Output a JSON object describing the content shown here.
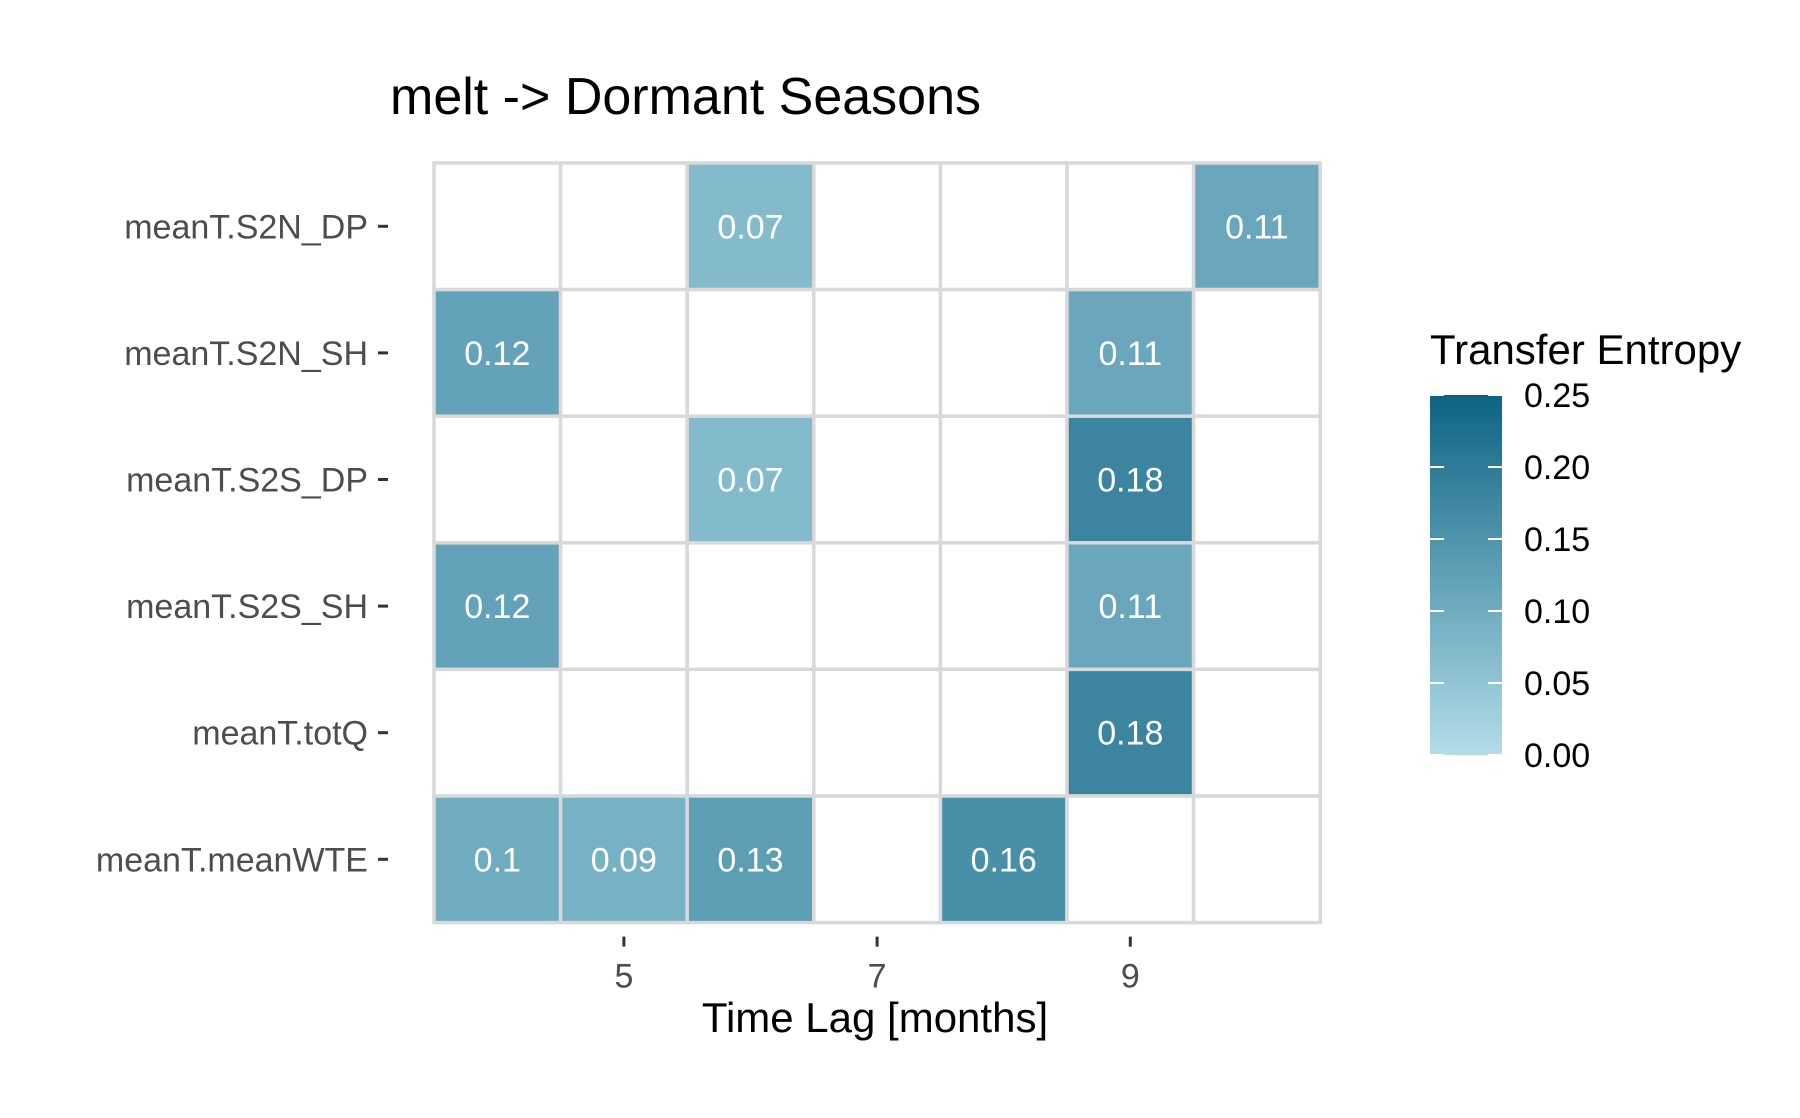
{
  "chart_data": {
    "type": "heatmap",
    "title": "melt -> Dormant Seasons",
    "xlabel": "Time Lag [months]",
    "ylabel": "",
    "x_values": [
      4,
      5,
      6,
      7,
      8,
      9,
      10
    ],
    "x_tick_labels": [
      "5",
      "7",
      "9"
    ],
    "x_tick_values": [
      5,
      7,
      9
    ],
    "y_categories": [
      "meanT.S2N_DP",
      "meanT.S2N_SH",
      "meanT.S2S_DP",
      "meanT.S2S_SH",
      "meanT.totQ",
      "meanT.meanWTE"
    ],
    "cells": [
      {
        "y": "meanT.S2N_DP",
        "x": 6,
        "value": 0.07,
        "label": "0.07"
      },
      {
        "y": "meanT.S2N_DP",
        "x": 10,
        "value": 0.11,
        "label": "0.11"
      },
      {
        "y": "meanT.S2N_SH",
        "x": 4,
        "value": 0.12,
        "label": "0.12"
      },
      {
        "y": "meanT.S2N_SH",
        "x": 9,
        "value": 0.11,
        "label": "0.11"
      },
      {
        "y": "meanT.S2S_DP",
        "x": 6,
        "value": 0.07,
        "label": "0.07"
      },
      {
        "y": "meanT.S2S_DP",
        "x": 9,
        "value": 0.18,
        "label": "0.18"
      },
      {
        "y": "meanT.S2S_SH",
        "x": 4,
        "value": 0.12,
        "label": "0.12"
      },
      {
        "y": "meanT.S2S_SH",
        "x": 9,
        "value": 0.11,
        "label": "0.11"
      },
      {
        "y": "meanT.totQ",
        "x": 9,
        "value": 0.18,
        "label": "0.18"
      },
      {
        "y": "meanT.meanWTE",
        "x": 4,
        "value": 0.1,
        "label": "0.1"
      },
      {
        "y": "meanT.meanWTE",
        "x": 5,
        "value": 0.09,
        "label": "0.09"
      },
      {
        "y": "meanT.meanWTE",
        "x": 6,
        "value": 0.13,
        "label": "0.13"
      },
      {
        "y": "meanT.meanWTE",
        "x": 8,
        "value": 0.16,
        "label": "0.16"
      }
    ],
    "empty_cell_color": "#ffffff",
    "grid_color": "#d9d9d9",
    "legend": {
      "title": "Transfer Entropy",
      "placement": "right",
      "range": [
        0,
        0.25
      ],
      "ticks": [
        "0.00",
        "0.05",
        "0.10",
        "0.15",
        "0.20",
        "0.25"
      ],
      "tick_values": [
        0,
        0.05,
        0.1,
        0.15,
        0.2,
        0.25
      ],
      "color_low": "#b3dde9",
      "color_high": "#0c6383"
    }
  }
}
